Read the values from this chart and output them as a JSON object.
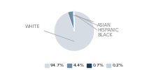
{
  "labels": [
    "WHITE",
    "ASIAN",
    "HISPANIC",
    "BLACK"
  ],
  "values": [
    94.7,
    4.4,
    0.7,
    0.2
  ],
  "colors": [
    "#d6dce4",
    "#6b8fa8",
    "#1e3a5c",
    "#c8d4de"
  ],
  "legend_labels": [
    "94.7%",
    "4.4%",
    "0.7%",
    "0.2%"
  ],
  "startangle": 90,
  "figsize": [
    2.4,
    1.0
  ],
  "dpi": 100,
  "label_color": "#808080",
  "line_color": "#aaaaaa",
  "label_fontsize": 4.8,
  "legend_fontsize": 4.5
}
